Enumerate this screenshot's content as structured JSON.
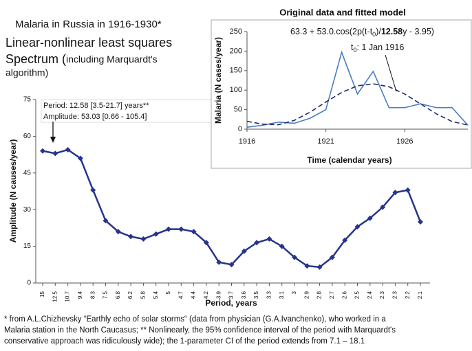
{
  "heading": "Malaria in Russia in 1916-1930*",
  "subtitle": [
    "Linear-nonlinear least squares",
    "Spectrum (",
    "including Marquardt's",
    "algorithm)"
  ],
  "footnote": [
    "* from A.L.Chizhevsky “Earthly echo of solar storms“ (data from physician (G.A.Ivanchenko), who worked in a",
    "Malaria station in the North Caucasus; ** Nonlinearly, the 95% confidence interval of the period with Marquardt's",
    "conservative approach was ridiculously wide); the 1-parameter CI of the period extends from 7.1 – 18.1"
  ],
  "chart_data": [
    {
      "type": "line",
      "x_label": "Period, years",
      "y_label": "Amplitude (N causes/year)",
      "annotation": [
        "Period: 12.58 [3.5-21.7] years**",
        "Amplitude: 53.03 [0.66 - 105.4]"
      ],
      "categories": [
        "15",
        "12.5",
        "10.7",
        "9.4",
        "8.3",
        "7.5",
        "6.8",
        "6.2",
        "5.8",
        "5.4",
        "5",
        "4.7",
        "4.4",
        "4.2",
        "3.9",
        "3.7",
        "3.6",
        "3.5",
        "3.3",
        "3.1",
        "3",
        "2.9",
        "2.8",
        "2.7",
        "2.6",
        "2.5",
        "2.4",
        "2.3",
        "2.3",
        "2.2",
        "2.1"
      ],
      "series": [
        {
          "color": "#26348b",
          "values": [
            54,
            53,
            54.5,
            51,
            38,
            25.5,
            21,
            19,
            18,
            20,
            22,
            22,
            21,
            16.5,
            8.5,
            7.5,
            13,
            16.5,
            18,
            15,
            10.5,
            7,
            6.5,
            10.5,
            17.5,
            23,
            26.5,
            31,
            37,
            38,
            25
          ]
        }
      ],
      "ylim": [
        0,
        75
      ],
      "yticks": [
        0,
        15,
        30,
        45,
        60,
        75
      ]
    },
    {
      "type": "line",
      "title": "Original data and fitted model",
      "formula": [
        "63.3 + 53.0.cos(2p(t-t",
        "0",
        ")/",
        "12.58",
        "y - 3.95)"
      ],
      "t0_label": [
        "t",
        "0",
        ": 1 Jan 1916"
      ],
      "x_label": "Time (calendar years)",
      "y_label": "Malaria (N cases/year)",
      "x": [
        1916,
        1917,
        1918,
        1919,
        1920,
        1921,
        1922,
        1923,
        1924,
        1925,
        1926,
        1927,
        1928,
        1929,
        1930
      ],
      "series": [
        {
          "color": "#4a7cc0",
          "dashed": false,
          "values": [
            5,
            10,
            18,
            15,
            28,
            50,
            197,
            90,
            148,
            55,
            55,
            65,
            55,
            55,
            10
          ]
        },
        {
          "color": "#1f2a6e",
          "dashed": true,
          "values": [
            20,
            12.8,
            11.3,
            22.5,
            43.6,
            69.6,
            94,
            110.9,
            116.2,
            108.6,
            89.9,
            64.7,
            39.2,
            19.5,
            10.5
          ]
        }
      ],
      "xlim": [
        1916,
        1930
      ],
      "xticks": [
        1916,
        1921,
        1926
      ],
      "ylim": [
        0,
        250
      ],
      "yticks": [
        0,
        50,
        100,
        150,
        200,
        250
      ]
    }
  ]
}
